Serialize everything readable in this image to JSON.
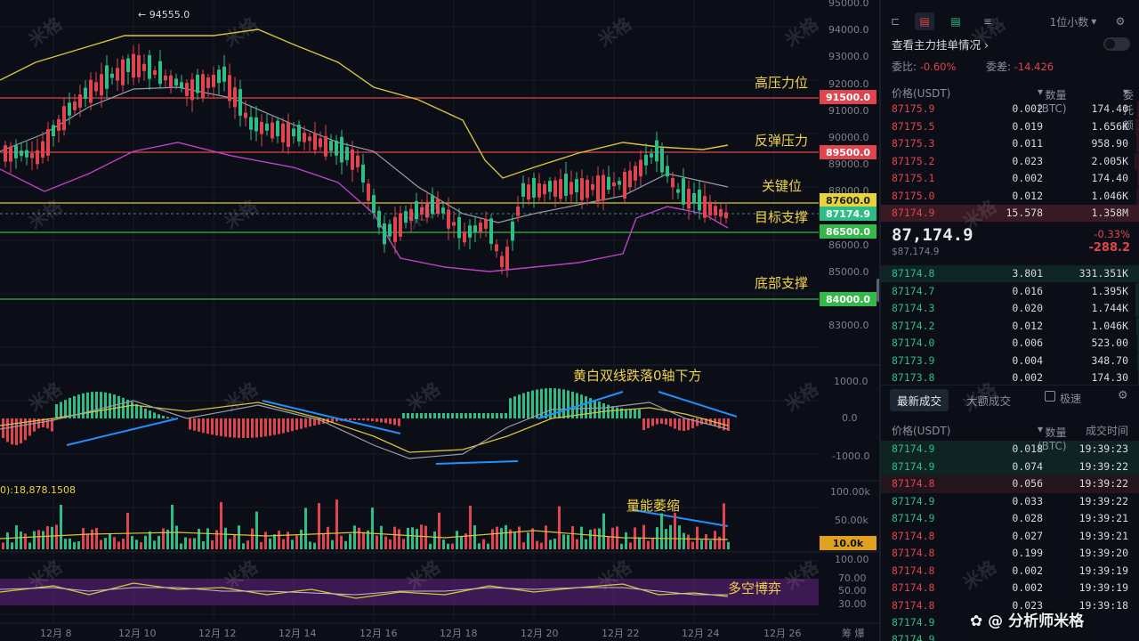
{
  "chart": {
    "peak_label": "← 94555.0",
    "y_axis_labels": [
      "95000.0",
      "94000.0",
      "93000.0",
      "92000.0",
      "91000.0",
      "90000.0",
      "89000.0",
      "88000.0",
      "87000.0",
      "86000.0",
      "85000.0",
      "84000.0",
      "83000.0"
    ],
    "macd_axis_labels": [
      "1000.0",
      "0.0",
      "-1000.0"
    ],
    "vol_axis_labels": [
      "100.00k",
      "50.00k"
    ],
    "rsi_axis_labels": [
      "100.00",
      "70.00",
      "50.00",
      "30.00"
    ],
    "x_axis_labels": [
      "12月 8",
      "12月 10",
      "12月 12",
      "12月 14",
      "12月 16",
      "12月 18",
      "12月 20",
      "12月 22",
      "12月 24",
      "12月 26"
    ],
    "x_axis_right": "筹  爆",
    "vol_info": "0):18,878.1508",
    "price_tags": {
      "p91500": "91500.0",
      "p89500": "89500.0",
      "p87600": "87600.0",
      "p87174": "87174.9",
      "p86500": "86500.0",
      "p84000": "84000.0",
      "vol10k": "10.0k"
    },
    "annotations": {
      "high_resistance": "高压力位",
      "rebound_resistance": "反弹压力",
      "key_level": "关键位",
      "target_support": "目标支撑",
      "bottom_support": "底部支撑",
      "macd_note": "黄白双线跌落0轴下方",
      "volume_note": "量能萎缩",
      "rsi_note": "多空博弈"
    },
    "watermark": "米格",
    "brand": "分析师米格",
    "colors": {
      "up": "#2ebd85",
      "down": "#e0444e",
      "yellow": "#d8c43a",
      "magenta": "#c040c8",
      "gray": "#9a9ca6",
      "blue": "#1e90ff"
    }
  },
  "book": {
    "toolbar_depth": "1位小数",
    "main_orders": "查看主力挂单情况",
    "ratio_label": "委比:",
    "ratio_value": "-0.60%",
    "diff_label": "委差:",
    "diff_value": "-14.426",
    "col_price": "价格(USDT)",
    "col_qty": "数量 (BTC)",
    "col_total": "委托额",
    "asks": [
      [
        "87175.9",
        "0.002",
        "174.40"
      ],
      [
        "87175.5",
        "0.019",
        "1.656K"
      ],
      [
        "87175.3",
        "0.011",
        "958.90"
      ],
      [
        "87175.2",
        "0.023",
        "2.005K"
      ],
      [
        "87175.1",
        "0.002",
        "174.40"
      ],
      [
        "87175.0",
        "0.012",
        "1.046K"
      ],
      [
        "87174.9",
        "15.578",
        "1.358M"
      ]
    ],
    "last_price": "87,174.9",
    "last_price_sub": "$87,174.9",
    "change_pct": "-0.33%",
    "change_val": "-288.2",
    "bids": [
      [
        "87174.8",
        "3.801",
        "331.351K"
      ],
      [
        "87174.7",
        "0.016",
        "1.395K"
      ],
      [
        "87174.3",
        "0.020",
        "1.744K"
      ],
      [
        "87174.2",
        "0.012",
        "1.046K"
      ],
      [
        "87174.0",
        "0.006",
        "523.00"
      ],
      [
        "87173.9",
        "0.004",
        "348.70"
      ],
      [
        "87173.8",
        "0.002",
        "174.30"
      ]
    ],
    "tab_latest": "最新成交",
    "tab_big": "大额成交",
    "fast_label": "极速",
    "trade_col_time": "成交时间",
    "trades": [
      [
        "87174.9",
        "0.018",
        "19:39:23",
        "up"
      ],
      [
        "87174.9",
        "0.074",
        "19:39:22",
        "up"
      ],
      [
        "87174.8",
        "0.056",
        "19:39:22",
        "down"
      ],
      [
        "87174.9",
        "0.033",
        "19:39:22",
        "up"
      ],
      [
        "87174.9",
        "0.028",
        "19:39:21",
        "up"
      ],
      [
        "87174.8",
        "0.027",
        "19:39:21",
        "down"
      ],
      [
        "87174.8",
        "0.199",
        "19:39:20",
        "down"
      ],
      [
        "87174.8",
        "0.002",
        "19:39:19",
        "down"
      ],
      [
        "87174.8",
        "0.002",
        "19:39:19",
        "down"
      ],
      [
        "87174.8",
        "0.023",
        "19:39:18",
        "down"
      ],
      [
        "87174.9",
        "",
        ""
      ],
      [
        "87174.9",
        "",
        ""
      ]
    ]
  }
}
